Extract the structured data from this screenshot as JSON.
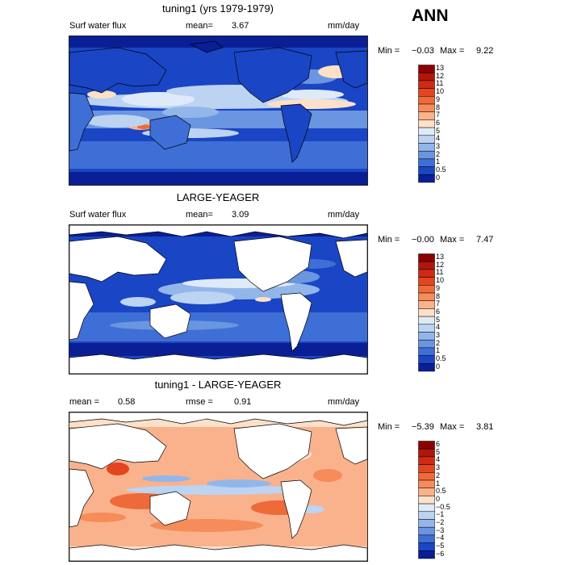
{
  "season": "ANN",
  "panels": [
    {
      "title": "tuning1 (yrs 1979-1979)",
      "variable": "Surf water flux",
      "stat1_label": "mean=",
      "stat1_value": "3.67",
      "stat2_label": "",
      "stat2_value": "",
      "units": "mm/day",
      "min_label": "Min =",
      "min_value": "−0.03",
      "max_label": "Max =",
      "max_value": "9.22",
      "colorbar_labels": [
        "13",
        "12",
        "11",
        "10",
        "9",
        "8",
        "7",
        "6",
        "5",
        "4",
        "3",
        "2",
        "1",
        "0.5",
        "0"
      ],
      "colorbar_colors": [
        "#8b0000",
        "#b0160c",
        "#cf2a14",
        "#e3451f",
        "#ee6a3a",
        "#f58c5a",
        "#f9b28c",
        "#fde0c8",
        "#dfeaf8",
        "#bcd3f1",
        "#93b6ea",
        "#6a95e0",
        "#3e6fd6",
        "#1a45c4",
        "#0a1f96"
      ]
    },
    {
      "title": "LARGE-YEAGER",
      "variable": "Surf water flux",
      "stat1_label": "mean=",
      "stat1_value": "3.09",
      "stat2_label": "",
      "stat2_value": "",
      "units": "mm/day",
      "min_label": "Min =",
      "min_value": "−0.00",
      "max_label": "Max =",
      "max_value": "7.47",
      "colorbar_labels": [
        "13",
        "12",
        "11",
        "10",
        "9",
        "8",
        "7",
        "6",
        "5",
        "4",
        "3",
        "2",
        "1",
        "0.5",
        "0"
      ],
      "colorbar_colors": [
        "#8b0000",
        "#b0160c",
        "#cf2a14",
        "#e3451f",
        "#ee6a3a",
        "#f58c5a",
        "#f9b28c",
        "#fde0c8",
        "#dfeaf8",
        "#bcd3f1",
        "#93b6ea",
        "#6a95e0",
        "#3e6fd6",
        "#1a45c4",
        "#0a1f96"
      ]
    },
    {
      "title": "tuning1 - LARGE-YEAGER",
      "variable": "",
      "stat1_label": "mean =",
      "stat1_value": "0.58",
      "stat2_label": "rmse =",
      "stat2_value": "0.91",
      "units": "mm/day",
      "min_label": "Min =",
      "min_value": "−5.39",
      "max_label": "Max =",
      "max_value": "3.81",
      "colorbar_labels": [
        "6",
        "5",
        "4",
        "3",
        "2",
        "1",
        "0.5",
        "0",
        "−0.5",
        "−1",
        "−2",
        "−3",
        "−4",
        "−5",
        "−6"
      ],
      "colorbar_colors": [
        "#8b0000",
        "#b0160c",
        "#cf2a14",
        "#e3451f",
        "#ee6a3a",
        "#f58c5a",
        "#f9b28c",
        "#fde0c8",
        "#dfeaf8",
        "#bcd3f1",
        "#93b6ea",
        "#6a95e0",
        "#3e6fd6",
        "#1a45c4",
        "#0a1f96"
      ]
    }
  ]
}
